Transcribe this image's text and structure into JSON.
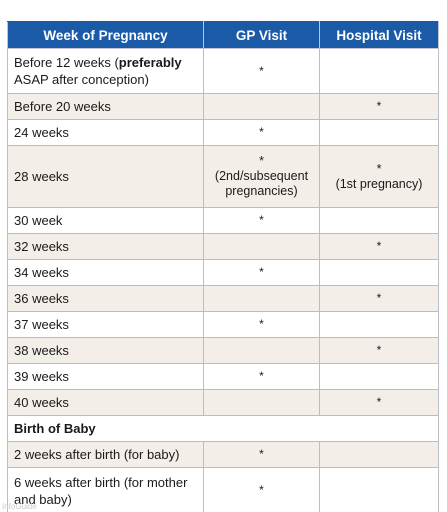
{
  "table": {
    "headers": [
      "Week of Pregnancy",
      "GP Visit",
      "Hospital Visit"
    ],
    "rows": [
      {
        "week": "Before 12 weeks (",
        "week_strong": "preferably",
        "week_tail": " ASAP after conception)",
        "gp": "*",
        "hospital": ""
      },
      {
        "week": "Before 20 weeks",
        "gp": "",
        "hospital": "*"
      },
      {
        "week": "24 weeks",
        "gp": "*",
        "hospital": ""
      },
      {
        "week": "28 weeks",
        "gp": "*",
        "gp_note": "(2nd/subsequent pregnancies)",
        "hospital": "*",
        "hospital_note": "(1st pregnancy)"
      },
      {
        "week": "30 week",
        "gp": "*",
        "hospital": ""
      },
      {
        "week": "32 weeks",
        "gp": "",
        "hospital": "*"
      },
      {
        "week": "34 weeks",
        "gp": "*",
        "hospital": ""
      },
      {
        "week": "36 weeks",
        "gp": "",
        "hospital": "*"
      },
      {
        "week": "37 weeks",
        "gp": "*",
        "hospital": ""
      },
      {
        "week": "38 weeks",
        "gp": "",
        "hospital": "*"
      },
      {
        "week": "39 weeks",
        "gp": "*",
        "hospital": ""
      },
      {
        "week": "40 weeks",
        "gp": "",
        "hospital": "*"
      },
      {
        "week": "Birth of Baby",
        "gp": "",
        "hospital": ""
      },
      {
        "week": "2 weeks after birth (for baby)",
        "gp": "*",
        "hospital": ""
      },
      {
        "week": "6 weeks after birth (for mother and baby)",
        "gp": "*",
        "hospital": ""
      }
    ]
  },
  "watermark": "InfoGuide"
}
